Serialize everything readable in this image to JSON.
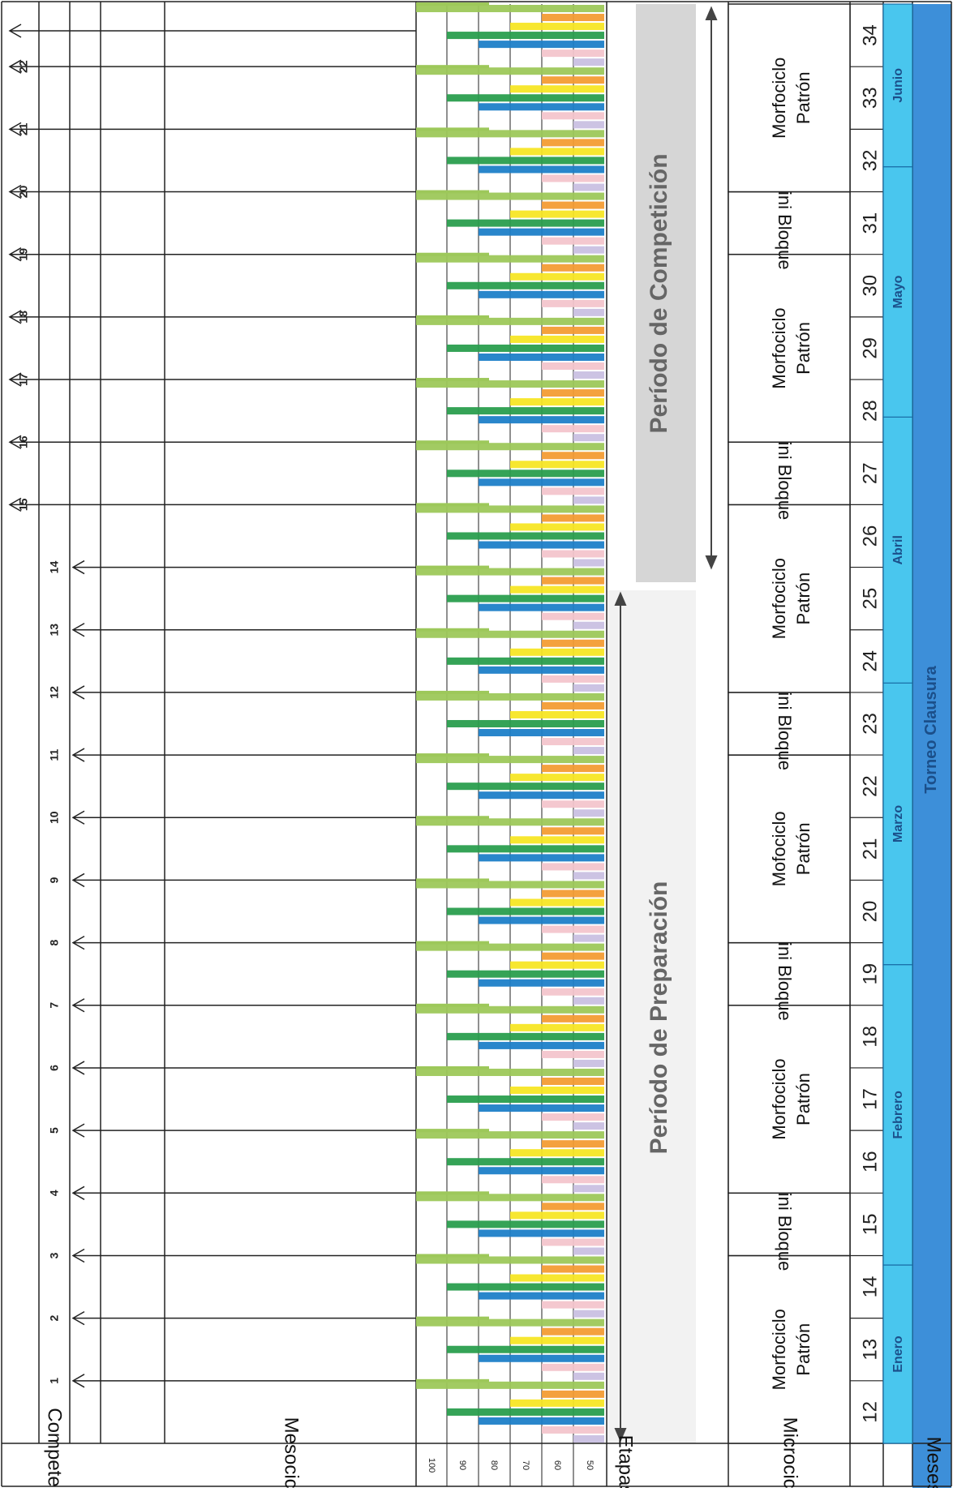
{
  "row_labels": {
    "competencia": "Competencia",
    "mesociclos": "Mesociclos",
    "etapas": "Etapas",
    "microciclos": "Microciclos",
    "meses": "Meses"
  },
  "intensity_scale": [
    "100",
    "90",
    "80",
    "70",
    "60",
    "50"
  ],
  "microcycle_numbers": [
    "12",
    "13",
    "14",
    "15",
    "16",
    "17",
    "18",
    "19",
    "20",
    "21",
    "22",
    "23",
    "24",
    "25",
    "26",
    "27",
    "28",
    "29",
    "30",
    "31",
    "32",
    "33",
    "34"
  ],
  "competition_numbers": [
    "1",
    "2",
    "3",
    "4",
    "5",
    "6",
    "7",
    "8",
    "9",
    "10",
    "11",
    "12",
    "13",
    "14",
    "15",
    "16",
    "17",
    "18",
    "19",
    "20",
    "21",
    "22"
  ],
  "mesocycle_blocks": [
    {
      "label_line1": "Morfociclo",
      "label_line2": "Patrón",
      "type": "morfociclo"
    },
    {
      "label_line1": "Mini Bloque",
      "label_line2": "",
      "type": "mini"
    },
    {
      "label_line1": "Morfociclo",
      "label_line2": "Patrón",
      "type": "morfociclo"
    },
    {
      "label_line1": "Mini Bloque",
      "label_line2": "",
      "type": "mini"
    },
    {
      "label_line1": "Mofociclo",
      "label_line2": "Patrón",
      "type": "morfociclo"
    },
    {
      "label_line1": "Mini Bloque",
      "label_line2": "",
      "type": "mini"
    },
    {
      "label_line1": "Morfociclo",
      "label_line2": "Patrón",
      "type": "morfociclo"
    },
    {
      "label_line1": "Mini Bloque",
      "label_line2": "",
      "type": "mini"
    },
    {
      "label_line1": "Morfociclo",
      "label_line2": "Patrón",
      "type": "morfociclo"
    },
    {
      "label_line1": "Mini Bloque",
      "label_line2": "",
      "type": "mini"
    },
    {
      "label_line1": "Morfociclo",
      "label_line2": "Patrón",
      "type": "morfociclo"
    }
  ],
  "months": [
    "Enero",
    "Febrero",
    "Marzo",
    "Abril",
    "Mayo",
    "Junio"
  ],
  "season": "Torneo Clausura",
  "periods": {
    "preparation": "Período de Preparación",
    "competition": "Período de Competición"
  },
  "colors": {
    "light_green": "#9dc85a",
    "dark_green": "#2a9e4e",
    "blue": "#1e7fc8",
    "yellow": "#f7e625",
    "orange": "#f39c34",
    "pink": "#f3c5cc",
    "lavender": "#c9c0e2",
    "light_blue": "#49c6ee",
    "season_blue": "#3d8fd9",
    "grey_band": "#d6d6d6"
  }
}
